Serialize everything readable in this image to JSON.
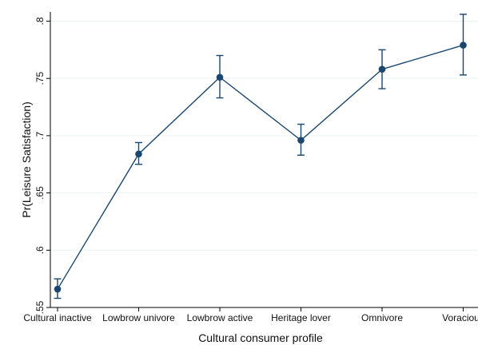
{
  "chart_data": {
    "type": "line",
    "title": "",
    "xlabel": "Cultural consumer profile",
    "ylabel": "Pr(Leisure Satisfaction)",
    "categories": [
      "Cultural inactive",
      "Lowbrow univore",
      "Lowbrow active",
      "Heritage lover",
      "Omnivore",
      "Voracious"
    ],
    "series": [
      {
        "values": [
          0.566,
          0.684,
          0.751,
          0.696,
          0.758,
          0.779
        ],
        "ci_lower": [
          0.558,
          0.675,
          0.733,
          0.683,
          0.741,
          0.753
        ],
        "ci_upper": [
          0.575,
          0.694,
          0.77,
          0.71,
          0.775,
          0.806
        ]
      }
    ],
    "ylim": [
      0.55,
      0.808
    ],
    "yticks": [
      0.55,
      0.6,
      0.65,
      0.7,
      0.75,
      0.8
    ],
    "ytick_labels": [
      ".55",
      ".6",
      ".65",
      ".7",
      ".75",
      ".8"
    ],
    "grid": true,
    "legend": "none",
    "colors": {
      "marker": "#1a476f",
      "line": "#1a476f",
      "grid": "#eaf2f3",
      "axis": "#000000"
    }
  }
}
